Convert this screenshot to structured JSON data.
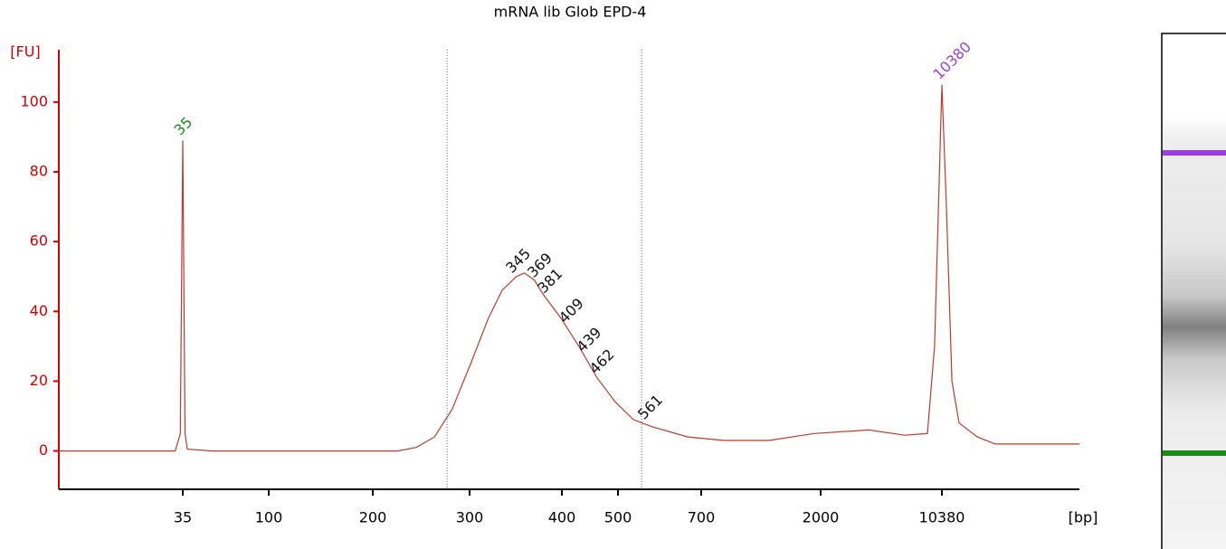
{
  "chart_data": {
    "type": "line",
    "title": "mRNA lib Glob EPD-4",
    "x_label": "[bp]",
    "y_label": "[FU]",
    "xscale": "log",
    "xlim": [
      8,
      67100
    ],
    "ylim": [
      -11,
      115
    ],
    "xticks": [
      35,
      100,
      200,
      300,
      400,
      500,
      700,
      2000,
      10380
    ],
    "yticks": [
      0,
      20,
      40,
      60,
      80,
      100
    ],
    "axis_color": "#d40000",
    "color": "#c0392b",
    "x": [
      8,
      32,
      34,
      35,
      36,
      37,
      50,
      222,
      240,
      259,
      279,
      301,
      318,
      332,
      347,
      356,
      367,
      377,
      399,
      428,
      460,
      495,
      532,
      572,
      663,
      853,
      1270,
      1890,
      3840,
      6270,
      8530,
      9400,
      10380,
      11040,
      11900,
      13100,
      16800,
      21400,
      67100
    ],
    "values": [
      0,
      0,
      5,
      89,
      5,
      0.5,
      0,
      0,
      1,
      4,
      12,
      25,
      38,
      46,
      50,
      51,
      49,
      45,
      38,
      30,
      21,
      14,
      9,
      7,
      4,
      3,
      3,
      5,
      6,
      4.5,
      5,
      30,
      105,
      70,
      20,
      8,
      4,
      2,
      2
    ],
    "peaks": [
      {
        "x": 35,
        "color": "#1a8a1a"
      },
      {
        "x": 345,
        "color": "#111111"
      },
      {
        "x": 369,
        "color": "#111111"
      },
      {
        "x": 381,
        "color": "#111111"
      },
      {
        "x": 409,
        "color": "#111111"
      },
      {
        "x": 439,
        "color": "#111111"
      },
      {
        "x": 462,
        "color": "#111111"
      },
      {
        "x": 561,
        "color": "#111111"
      },
      {
        "x": 10380,
        "color": "#9b3fe0"
      }
    ],
    "region": [
      273,
      550
    ],
    "region_color": "#5a5ad0"
  }
}
